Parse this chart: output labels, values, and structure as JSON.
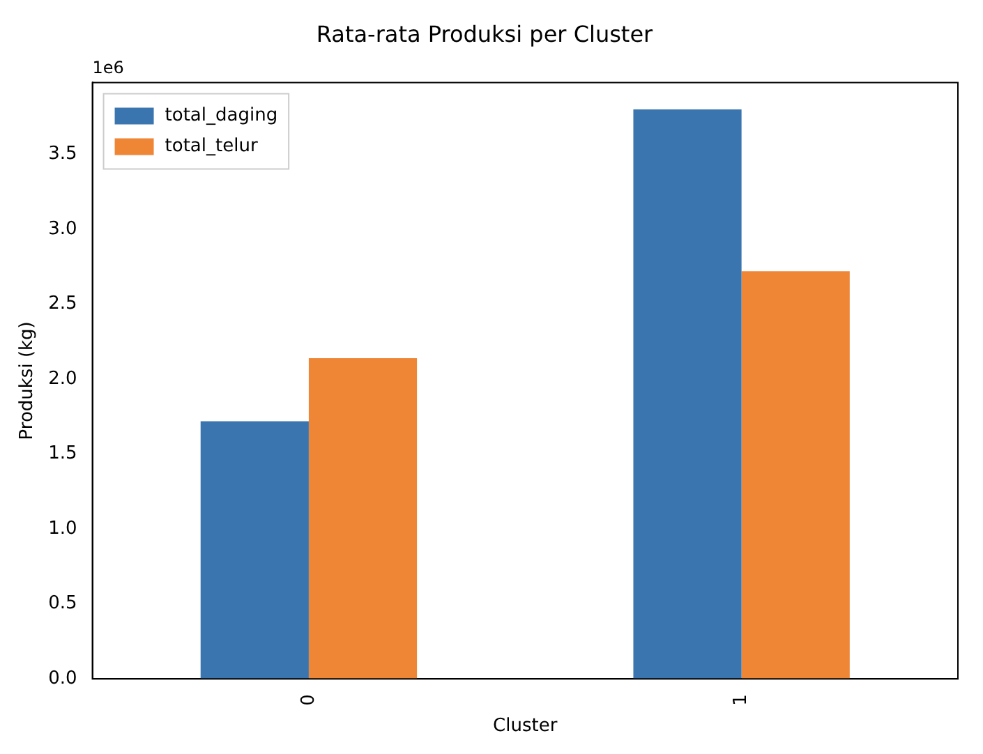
{
  "chart_data": {
    "type": "bar",
    "title": "Rata-rata Produksi per Cluster",
    "xlabel": "Cluster",
    "ylabel": "Produksi (kg)",
    "categories": [
      "0",
      "1"
    ],
    "series": [
      {
        "name": "total_daging",
        "color": "#3a75af",
        "values": [
          1.72,
          3.8
        ]
      },
      {
        "name": "total_telur",
        "color": "#ef8636",
        "values": [
          2.14,
          2.72
        ]
      }
    ],
    "ylim": [
      0,
      3.98
    ],
    "yticks": [
      {
        "value": 0,
        "label": "0.0"
      },
      {
        "value": 0.5,
        "label": "0.5"
      },
      {
        "value": 1,
        "label": "1.0"
      },
      {
        "value": 1.5,
        "label": "1.5"
      },
      {
        "value": 2,
        "label": "2.0"
      },
      {
        "value": 2.5,
        "label": "2.5"
      },
      {
        "value": 3,
        "label": "3.0"
      },
      {
        "value": 3.5,
        "label": "3.5"
      }
    ],
    "annotations": [
      "1e6"
    ],
    "legend": "top left",
    "grid": false
  }
}
